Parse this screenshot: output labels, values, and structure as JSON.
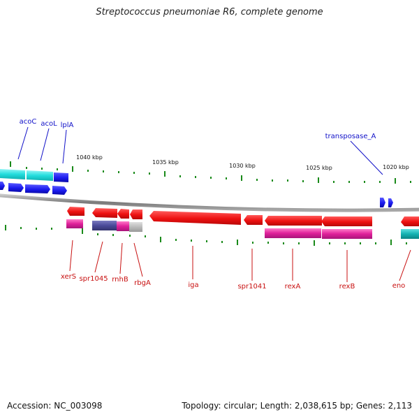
{
  "title": "Streptococcus pneumoniae R6, complete genome",
  "footer": {
    "accession": "Accession: NC_003098",
    "summary": "Topology: circular; Length: 2,038,615 bp; Genes: 2,113"
  },
  "scale_ticks": [
    "1040 kbp",
    "1035 kbp",
    "1030 kbp",
    "1025 kbp",
    "1020 kbp"
  ],
  "upper_gene_labels": [
    "acoC",
    "acoL",
    "lplA",
    "transposase_A"
  ],
  "lower_gene_labels": [
    "xerS",
    "spr1045",
    "rnhB",
    "rbgA",
    "iga",
    "spr1041",
    "rexA",
    "rexB",
    "eno"
  ],
  "colors": {
    "upper_label": "#1010c8",
    "lower_label": "#c81010",
    "gene_red": "#ee1111",
    "gene_blue": "#1a1aee",
    "cds_cyan": "#22dddd",
    "cds_magenta": "#e0209a",
    "cds_purple": "#4a4a9a",
    "cds_grey": "#bbbbbb",
    "tick_green": "#1a8a1a",
    "backbone": "#808080"
  }
}
